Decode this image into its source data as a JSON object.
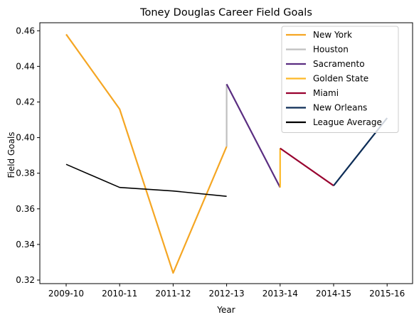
{
  "chart_data": {
    "type": "line",
    "title": "Toney Douglas Career Field Goals",
    "xlabel": "Year",
    "ylabel": "Field Goals",
    "categories": [
      "2009-10",
      "2010-11",
      "2011-12",
      "2012-13",
      "2013-14",
      "2014-15",
      "2015-16"
    ],
    "ylim": [
      0.318,
      0.4645
    ],
    "yticks": [
      "0.32",
      "0.34",
      "0.36",
      "0.38",
      "0.40",
      "0.42",
      "0.44",
      "0.46"
    ],
    "grid": false,
    "legend_position": "top-right",
    "series": [
      {
        "name": "New York",
        "color": "#F5A623",
        "points": [
          [
            "2009-10",
            0.458
          ],
          [
            "2010-11",
            0.416
          ],
          [
            "2011-12",
            0.324
          ],
          [
            "2012-13",
            0.395
          ]
        ]
      },
      {
        "name": "Houston",
        "color": "#BFBFBF",
        "points": [
          [
            "2012-13",
            0.395
          ],
          [
            "2012-13",
            0.43
          ]
        ]
      },
      {
        "name": "Sacramento",
        "color": "#5A2D81",
        "points": [
          [
            "2012-13",
            0.43
          ],
          [
            "2013-14",
            0.372
          ]
        ]
      },
      {
        "name": "Golden State",
        "color": "#FDB927",
        "points": [
          [
            "2013-14",
            0.372
          ],
          [
            "2013-14",
            0.394
          ]
        ]
      },
      {
        "name": "Miami",
        "color": "#98002E",
        "points": [
          [
            "2013-14",
            0.394
          ],
          [
            "2014-15",
            0.373
          ]
        ]
      },
      {
        "name": "New Orleans",
        "color": "#0C2C56",
        "points": [
          [
            "2014-15",
            0.373
          ],
          [
            "2015-16",
            0.411
          ]
        ]
      },
      {
        "name": "League Average",
        "color": "#000000",
        "points": [
          [
            "2009-10",
            0.385
          ],
          [
            "2010-11",
            0.372
          ],
          [
            "2011-12",
            0.37
          ],
          [
            "2012-13",
            0.367
          ]
        ]
      }
    ]
  }
}
